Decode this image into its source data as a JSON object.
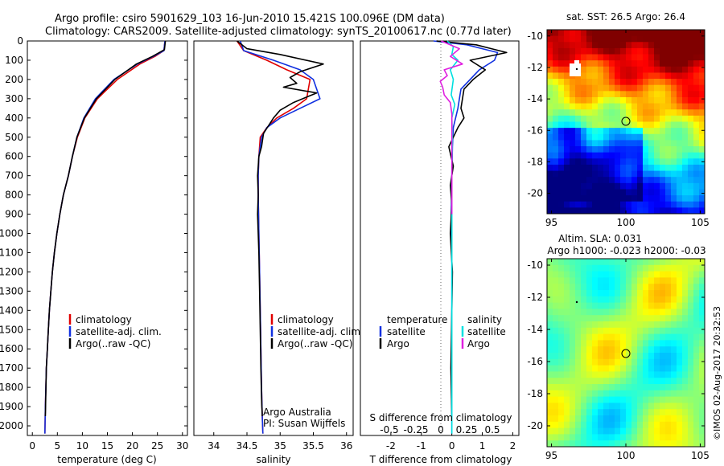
{
  "title_line1": "Argo profile: csiro 5901629_103 16-Jun-2010 15.421S 100.096E (DM data)",
  "title_line2": "Climatology: CARS2009. Satellite-adjusted climatology: synTS_20100617.nc (0.77d later)",
  "footer_credit": "©IMOS 02-Aug-2017 20:32:53",
  "colors": {
    "climatology": "#e00000",
    "satellite": "#1030e0",
    "argo": "#000000",
    "sat_salinity": "#00e0e0",
    "argo_salinity": "#e020e0"
  },
  "chart_data": [
    {
      "id": "temperature",
      "type": "line",
      "xlabel": "temperature (deg C)",
      "ylim": [
        0,
        2050
      ],
      "xlim": [
        -1,
        31
      ],
      "xticks": [
        0,
        5,
        10,
        15,
        20,
        25,
        30
      ],
      "yticks": [
        0,
        100,
        200,
        300,
        400,
        500,
        600,
        700,
        800,
        900,
        1000,
        1100,
        1200,
        1300,
        1400,
        1500,
        1600,
        1700,
        1800,
        1900,
        2000
      ],
      "legend": [
        "climatology",
        "satellite-adj. clim.",
        "Argo(..raw -QC)"
      ],
      "series": [
        {
          "name": "climatology",
          "color": "#e00000",
          "x": [
            26.5,
            26.3,
            24.5,
            21.5,
            17.0,
            13.0,
            10.5,
            9.0,
            8.0,
            7.2,
            6.2,
            5.5,
            4.9,
            4.4,
            4.0,
            3.7,
            3.4,
            3.2,
            3.0,
            2.8,
            2.6,
            2.5
          ],
          "y": [
            0,
            50,
            80,
            120,
            200,
            300,
            400,
            500,
            600,
            700,
            800,
            900,
            1000,
            1100,
            1200,
            1300,
            1400,
            1500,
            1600,
            1700,
            1900,
            2040
          ]
        },
        {
          "name": "satellite-adj. clim.",
          "color": "#1030e0",
          "x": [
            26.5,
            26.3,
            24.2,
            21.0,
            16.3,
            12.6,
            10.3,
            8.9,
            8.0,
            7.2,
            6.2,
            5.5,
            4.9,
            4.4,
            4.0,
            3.7,
            3.4,
            3.2,
            3.0,
            2.8,
            2.6,
            2.5
          ],
          "y": [
            0,
            50,
            80,
            120,
            200,
            300,
            400,
            500,
            600,
            700,
            800,
            900,
            1000,
            1100,
            1200,
            1300,
            1400,
            1500,
            1600,
            1700,
            1900,
            2040
          ]
        },
        {
          "name": "Argo(..raw -QC)",
          "color": "#000000",
          "x": [
            26.6,
            26.4,
            24.0,
            20.8,
            16.5,
            12.8,
            10.4,
            8.9,
            8.0,
            7.2,
            6.2,
            5.5,
            4.9,
            4.4,
            4.0,
            3.7,
            3.4,
            3.2,
            3.0,
            2.8,
            2.6
          ],
          "y": [
            0,
            45,
            80,
            120,
            200,
            300,
            400,
            500,
            600,
            700,
            800,
            900,
            1000,
            1100,
            1200,
            1300,
            1400,
            1500,
            1600,
            1700,
            1950
          ]
        }
      ]
    },
    {
      "id": "salinity",
      "type": "line",
      "xlabel": "salinity",
      "ylim": [
        0,
        2050
      ],
      "xlim": [
        33.7,
        36.1
      ],
      "xticks": [
        34,
        34.5,
        35,
        35.5,
        36
      ],
      "legend": [
        "climatology",
        "satellite-adj. clim.",
        "Argo(..raw -QC)"
      ],
      "annotation": [
        "Argo Australia",
        "PI: Susan Wijffels"
      ],
      "series": [
        {
          "name": "climatology",
          "color": "#e00000",
          "x": [
            34.35,
            34.45,
            34.8,
            35.1,
            35.45,
            35.4,
            35.2,
            34.95,
            34.8,
            34.7,
            34.68,
            34.67,
            34.67,
            34.68,
            34.69,
            34.7,
            34.71,
            34.72,
            34.73,
            34.74
          ],
          "y": [
            0,
            50,
            100,
            150,
            200,
            300,
            350,
            400,
            450,
            500,
            600,
            700,
            800,
            1000,
            1200,
            1400,
            1600,
            1800,
            1950,
            2040
          ]
        },
        {
          "name": "satellite-adj. clim.",
          "color": "#1030e0",
          "x": [
            34.4,
            34.45,
            34.9,
            35.3,
            35.5,
            35.6,
            35.3,
            35.0,
            34.8,
            34.72,
            34.68,
            34.67,
            34.67,
            34.68,
            34.69,
            34.7,
            34.71,
            34.72,
            34.73,
            34.74
          ],
          "y": [
            0,
            50,
            100,
            150,
            200,
            300,
            350,
            400,
            450,
            500,
            600,
            700,
            800,
            1000,
            1200,
            1400,
            1600,
            1800,
            1950,
            2040
          ]
        },
        {
          "name": "Argo(..raw -QC)",
          "color": "#000000",
          "x": [
            34.35,
            34.5,
            35.0,
            35.65,
            35.3,
            35.15,
            35.25,
            35.05,
            35.55,
            35.2,
            35.0,
            34.9,
            34.75,
            34.72,
            34.68,
            34.66,
            34.67,
            34.66,
            34.68,
            34.69,
            34.7,
            34.71,
            34.72,
            34.73
          ],
          "y": [
            0,
            40,
            70,
            120,
            160,
            190,
            220,
            240,
            270,
            320,
            360,
            400,
            480,
            550,
            600,
            700,
            800,
            900,
            1100,
            1300,
            1500,
            1700,
            1850,
            1950
          ]
        }
      ]
    },
    {
      "id": "difference",
      "type": "line",
      "xlabel": "T difference from climatology",
      "top_axis_label": "S difference from climatology",
      "ylim": [
        0,
        2050
      ],
      "xlim": [
        -3,
        2.2
      ],
      "xticks": [
        -2,
        -1,
        0,
        1,
        2
      ],
      "top_xticks": [
        "-0.5",
        "-0.25",
        "0",
        "0.25",
        "0.5"
      ],
      "legend_temperature_title": "temperature",
      "legend_salinity_title": "salinity",
      "legend_temperature": [
        "satellite",
        "Argo"
      ],
      "legend_salinity": [
        "satellite",
        "Argo"
      ],
      "series": [
        {
          "name": "T satellite",
          "color": "#1030e0",
          "x": [
            -0.6,
            0.5,
            1.0,
            1.5,
            1.4,
            0.9,
            0.3,
            0.2,
            0.05,
            0.02,
            0.0,
            -0.02,
            0.0,
            0.0,
            0.0,
            0.0,
            0.0
          ],
          "y": [
            0,
            20,
            40,
            60,
            100,
            150,
            250,
            350,
            450,
            550,
            700,
            900,
            1100,
            1300,
            1500,
            1800,
            2040
          ]
        },
        {
          "name": "T Argo",
          "color": "#000000",
          "x": [
            -0.5,
            0.8,
            1.3,
            1.8,
            0.6,
            1.1,
            0.7,
            0.4,
            0.3,
            0.4,
            0.2,
            -0.1,
            0.05,
            -0.05,
            0.0,
            -0.05,
            0.02,
            0.0,
            -0.03,
            0.0
          ],
          "y": [
            0,
            20,
            40,
            60,
            100,
            150,
            200,
            250,
            350,
            400,
            450,
            550,
            650,
            750,
            850,
            1000,
            1200,
            1400,
            1700,
            1950
          ]
        },
        {
          "name": "S satellite",
          "color": "#00e0e0",
          "x": [
            -0.15,
            0.05,
            0.0,
            0.2,
            -0.05,
            0.05,
            -0.02,
            0.1,
            0.0,
            0.02,
            0.0,
            0.0,
            0.0,
            0.0,
            0.0,
            0.0
          ],
          "y": [
            0,
            30,
            70,
            100,
            150,
            200,
            280,
            330,
            400,
            500,
            650,
            800,
            1000,
            1300,
            1700,
            2040
          ]
        },
        {
          "name": "S Argo",
          "color": "#e020e0",
          "x": [
            -0.35,
            0.25,
            -0.05,
            0.35,
            -0.25,
            -0.15,
            -0.38,
            -0.3,
            -0.25,
            -0.05,
            0.0,
            0.0,
            0.0,
            0.0
          ],
          "y": [
            0,
            40,
            80,
            120,
            150,
            180,
            210,
            240,
            280,
            320,
            380,
            500,
            700,
            900
          ]
        }
      ]
    },
    {
      "id": "sst_map",
      "type": "heatmap",
      "title": "sat. SST: 26.5 Argo: 26.4",
      "xlim": [
        94.7,
        105.3
      ],
      "ylim": [
        -21.3,
        -9.6
      ],
      "xticks": [
        95,
        100,
        105
      ],
      "yticks": [
        -10,
        -12,
        -14,
        -16,
        -18,
        -20
      ],
      "argo_position": {
        "lon": 100.096,
        "lat": -15.421
      }
    },
    {
      "id": "sla_map",
      "type": "heatmap",
      "title_line1": "Altim. SLA: 0.031",
      "title_line2": "Argo h1000: -0.023 h2000: -0.03",
      "xlim": [
        94.7,
        105.3
      ],
      "ylim": [
        -21.3,
        -9.6
      ],
      "xticks": [
        95,
        100,
        105
      ],
      "yticks": [
        -10,
        -12,
        -14,
        -16,
        -18,
        -20
      ],
      "argo_position": {
        "lon": 100.096,
        "lat": -15.421
      }
    }
  ]
}
